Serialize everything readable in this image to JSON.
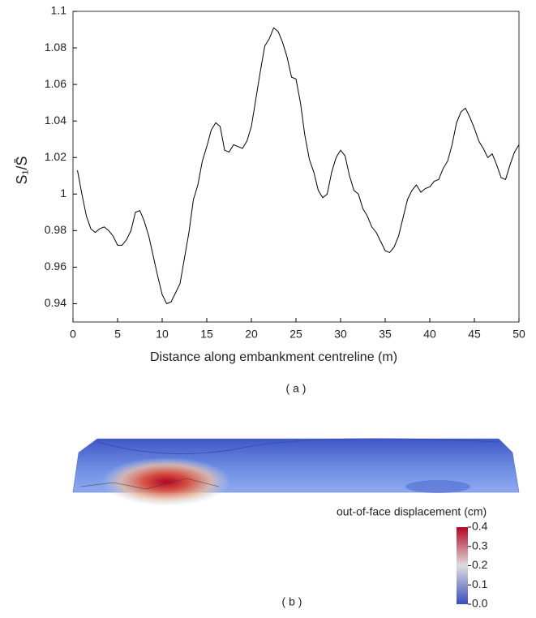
{
  "chart_data": [
    {
      "type": "line",
      "x": [
        0.5,
        1,
        1.5,
        2,
        2.5,
        3,
        3.5,
        4,
        4.5,
        5,
        5.5,
        6,
        6.5,
        7,
        7.5,
        8,
        8.5,
        9,
        9.5,
        10,
        10.5,
        11,
        11.5,
        12,
        12.5,
        13,
        13.5,
        14,
        14.5,
        15,
        15.5,
        16,
        16.5,
        17,
        17.5,
        18,
        18.5,
        19,
        19.5,
        20,
        20.5,
        21,
        21.5,
        22,
        22.5,
        23,
        23.5,
        24,
        24.5,
        25,
        25.5,
        26,
        26.5,
        27,
        27.5,
        28,
        28.5,
        29,
        29.5,
        30,
        30.5,
        31,
        31.5,
        32,
        32.5,
        33,
        33.5,
        34,
        34.5,
        35,
        35.5,
        36,
        36.5,
        37,
        37.5,
        38,
        38.5,
        39,
        39.5,
        40,
        40.5,
        41,
        41.5,
        42,
        42.5,
        43,
        43.5,
        44,
        44.5,
        45,
        45.5,
        46,
        46.5,
        47,
        47.5,
        48,
        48.5,
        49,
        49.5,
        50
      ],
      "values": [
        1.013,
        1.0,
        0.988,
        0.981,
        0.979,
        0.981,
        0.982,
        0.98,
        0.977,
        0.972,
        0.972,
        0.975,
        0.98,
        0.99,
        0.991,
        0.985,
        0.977,
        0.966,
        0.955,
        0.945,
        0.94,
        0.941,
        0.946,
        0.951,
        0.965,
        0.979,
        0.997,
        1.005,
        1.018,
        1.026,
        1.035,
        1.039,
        1.037,
        1.024,
        1.023,
        1.027,
        1.026,
        1.025,
        1.029,
        1.037,
        1.052,
        1.067,
        1.081,
        1.085,
        1.091,
        1.089,
        1.083,
        1.075,
        1.064,
        1.063,
        1.05,
        1.032,
        1.019,
        1.012,
        1.002,
        0.998,
        1.0,
        1.012,
        1.02,
        1.024,
        1.021,
        1.01,
        1.002,
        1.0,
        0.992,
        0.988,
        0.982,
        0.979,
        0.974,
        0.969,
        0.968,
        0.971,
        0.977,
        0.987,
        0.997,
        1.002,
        1.005,
        1.001,
        1.003,
        1.004,
        1.007,
        1.008,
        1.014,
        1.018,
        1.027,
        1.039,
        1.045,
        1.047,
        1.042,
        1.036,
        1.029,
        1.025,
        1.02,
        1.022,
        1.016,
        1.009,
        1.008,
        1.016,
        1.023,
        1.027
      ],
      "color": "#000000",
      "xlim": [
        0,
        50
      ],
      "xticks": [
        0,
        5,
        10,
        15,
        20,
        25,
        30,
        35,
        40,
        45,
        50
      ],
      "ylim": [
        0.93,
        1.1
      ],
      "yticks": [
        0.94,
        0.96,
        0.98,
        1,
        1.02,
        1.04,
        1.06,
        1.08,
        1.1
      ],
      "x_label": "Distance along embankment centreline (m)",
      "y_label": "S₁/S̄",
      "caption": "( a )"
    },
    {
      "type": "colorbar",
      "label": "out-of-face displacement   (cm)",
      "clim": [
        0,
        0.4
      ],
      "cticks": [
        {
          "value": 0,
          "label": "0.0"
        },
        {
          "value": 0.1,
          "label": "0.1"
        },
        {
          "value": 0.2,
          "label": "0.2"
        },
        {
          "value": 0.3,
          "label": "0.3"
        },
        {
          "value": 0.4,
          "label": "0.4"
        }
      ],
      "colors": [
        "#3b4cc0",
        "#dddddd",
        "#b40426"
      ],
      "caption": "( b )"
    }
  ]
}
